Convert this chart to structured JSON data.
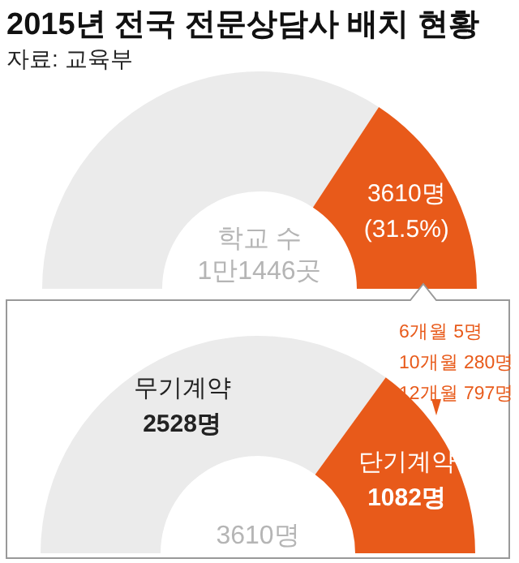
{
  "chart_data": [
    {
      "type": "donut",
      "title": "2015년 전국 전문상담사 배치 현황",
      "subtitle": "자료: 교육부",
      "categories": [
        null,
        null
      ],
      "values": [
        68.5,
        31.5
      ],
      "colors": [
        "#ebebeb",
        "#e85a1a"
      ],
      "value_labels": [
        null,
        "3610명\n(31.5%)"
      ],
      "annotations": [
        "학교 수\n1만1446곳"
      ]
    },
    {
      "type": "donut",
      "categories": [
        "무기계약",
        "단기계약"
      ],
      "values": [
        2528,
        1082
      ],
      "colors": [
        "#ebebeb",
        "#e85a1a"
      ],
      "value_labels": [
        "2528명",
        "1082명"
      ],
      "annotations": [
        "3610명",
        "6개월 5명\n10개월 280명\n12개월 797명"
      ]
    }
  ]
}
